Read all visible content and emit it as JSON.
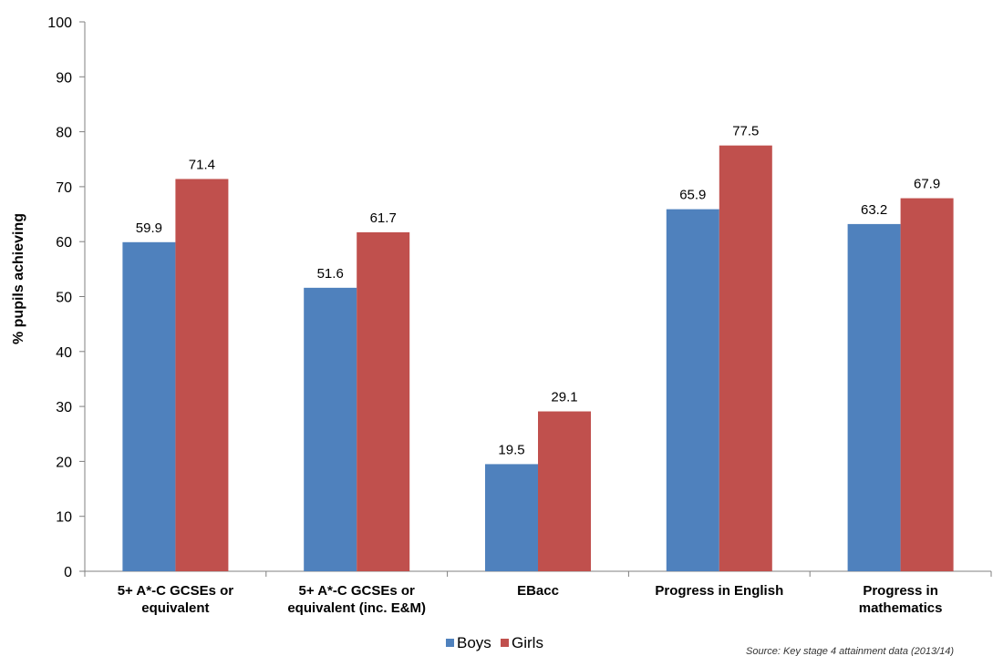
{
  "chart_data": {
    "type": "bar",
    "ylabel": "% pupils achieving",
    "ylim": [
      0,
      100
    ],
    "yticks": [
      "0",
      "10",
      "20",
      "30",
      "40",
      "50",
      "60",
      "70",
      "80",
      "90",
      "100"
    ],
    "categories": [
      [
        "5+ A*-C GCSEs or",
        "equivalent"
      ],
      [
        "5+ A*-C GCSEs or",
        "equivalent (inc. E&M)"
      ],
      [
        "EBacc"
      ],
      [
        "Progress in English"
      ],
      [
        "Progress in",
        "mathematics"
      ]
    ],
    "series": [
      {
        "name": "Boys",
        "color": "#4F81BD",
        "values": [
          59.9,
          51.6,
          19.5,
          65.9,
          63.2
        ]
      },
      {
        "name": "Girls",
        "color": "#C0504D",
        "values": [
          71.4,
          61.7,
          29.1,
          77.5,
          67.9
        ]
      }
    ],
    "legend_position": "bottom",
    "grid": false,
    "source": "Source: Key stage 4 attainment data (2013/14)"
  }
}
